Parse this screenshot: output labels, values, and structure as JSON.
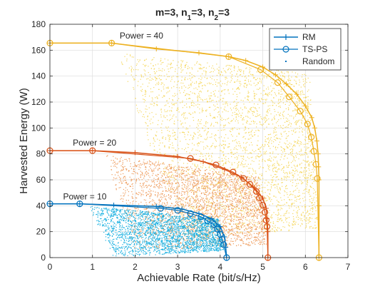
{
  "chart_data": {
    "type": "line",
    "title_parts": {
      "a": "m=3, n",
      "s1": "1",
      "b": "=3, n",
      "s2": "2",
      "c": "=3"
    },
    "xlabel": "Achievable Rate (bit/s/Hz)",
    "ylabel": "Harvested Energy (W)",
    "xlim": [
      0,
      7
    ],
    "ylim": [
      0,
      180
    ],
    "xticks": [
      "0",
      "1",
      "2",
      "3",
      "4",
      "5",
      "6",
      "7"
    ],
    "yticks": [
      "0",
      "20",
      "40",
      "60",
      "80",
      "100",
      "120",
      "140",
      "160",
      "180"
    ],
    "grid": true,
    "legend_position": "top-right",
    "legend": [
      "RM",
      "TS-PS",
      "Random"
    ],
    "annotations": [
      "Power = 40",
      "Power = 20",
      "Power = 10"
    ],
    "colors": {
      "p10": "#0072BD",
      "p20": "#D95319",
      "p40": "#EDB120",
      "scatter10": "#1AB0E0",
      "scatter20": "#EE9A5A",
      "scatter40": "#F5D75C"
    },
    "series": [
      {
        "power": 40,
        "color_key": "p40",
        "rm": [
          [
            0,
            165.5
          ],
          [
            1.45,
            165.5
          ],
          [
            2.5,
            161
          ],
          [
            3.5,
            158
          ],
          [
            4.2,
            155
          ],
          [
            4.6,
            152
          ],
          [
            5.0,
            147
          ],
          [
            5.3,
            141
          ],
          [
            5.55,
            134
          ],
          [
            5.8,
            126
          ],
          [
            6.0,
            117
          ],
          [
            6.15,
            108
          ],
          [
            6.22,
            100
          ],
          [
            6.27,
            90
          ],
          [
            6.3,
            80
          ],
          [
            6.31,
            70
          ],
          [
            6.32,
            60
          ],
          [
            6.32,
            40
          ],
          [
            6.32,
            0
          ]
        ],
        "tsps": [
          [
            0,
            165.5
          ],
          [
            1.45,
            165.5
          ],
          [
            4.2,
            155
          ],
          [
            4.95,
            145
          ],
          [
            5.35,
            135
          ],
          [
            5.62,
            124
          ],
          [
            5.88,
            113
          ],
          [
            6.05,
            103
          ],
          [
            6.14,
            93
          ],
          [
            6.2,
            82
          ],
          [
            6.25,
            72
          ],
          [
            6.28,
            61
          ],
          [
            6.32,
            0
          ]
        ],
        "scatter": {
          "tl": [
            1.5,
            158
          ],
          "tr": [
            6.1,
            142
          ],
          "br": [
            6.3,
            22
          ],
          "bl": [
            3.2,
            15
          ],
          "count": 3200
        }
      },
      {
        "power": 20,
        "color_key": "p20",
        "rm": [
          [
            0,
            82.5
          ],
          [
            1.0,
            82.5
          ],
          [
            2.0,
            81
          ],
          [
            3.0,
            78
          ],
          [
            3.6,
            74
          ],
          [
            4.1,
            68
          ],
          [
            4.5,
            62
          ],
          [
            4.8,
            54
          ],
          [
            5.0,
            46
          ],
          [
            5.08,
            38
          ],
          [
            5.1,
            30
          ],
          [
            5.12,
            20
          ],
          [
            5.12,
            0
          ]
        ],
        "tsps": [
          [
            0,
            82.5
          ],
          [
            1.0,
            82.5
          ],
          [
            3.3,
            76.5
          ],
          [
            3.9,
            71.5
          ],
          [
            4.3,
            66
          ],
          [
            4.55,
            61
          ],
          [
            4.7,
            56.5
          ],
          [
            4.85,
            51
          ],
          [
            4.92,
            46
          ],
          [
            5.0,
            40.5
          ],
          [
            5.05,
            35
          ],
          [
            5.08,
            29
          ],
          [
            5.1,
            24
          ],
          [
            5.12,
            0
          ]
        ],
        "scatter": {
          "tl": [
            1.3,
            80
          ],
          "tr": [
            4.9,
            62
          ],
          "br": [
            5.1,
            10
          ],
          "bl": [
            2.0,
            5
          ],
          "count": 2800
        }
      },
      {
        "power": 10,
        "color_key": "p10",
        "rm": [
          [
            0,
            41.5
          ],
          [
            0.7,
            41.5
          ],
          [
            1.5,
            40.5
          ],
          [
            2.5,
            39.5
          ],
          [
            3.1,
            37.5
          ],
          [
            3.5,
            34
          ],
          [
            3.8,
            30
          ],
          [
            4.0,
            24
          ],
          [
            4.1,
            16
          ],
          [
            4.13,
            8
          ],
          [
            4.15,
            0
          ]
        ],
        "tsps": [
          [
            0,
            41.5
          ],
          [
            0.7,
            41.5
          ],
          [
            2.6,
            38
          ],
          [
            3.0,
            36.5
          ],
          [
            3.3,
            34
          ],
          [
            3.55,
            31.5
          ],
          [
            3.7,
            28.5
          ],
          [
            3.85,
            25.5
          ],
          [
            3.93,
            22
          ],
          [
            4.0,
            18
          ],
          [
            4.05,
            14
          ],
          [
            4.08,
            10
          ],
          [
            4.15,
            0
          ]
        ],
        "scatter": {
          "tl": [
            0.9,
            40
          ],
          "tr": [
            3.95,
            30
          ],
          "br": [
            4.1,
            5
          ],
          "bl": [
            1.5,
            0.5
          ],
          "count": 2600
        }
      }
    ]
  }
}
